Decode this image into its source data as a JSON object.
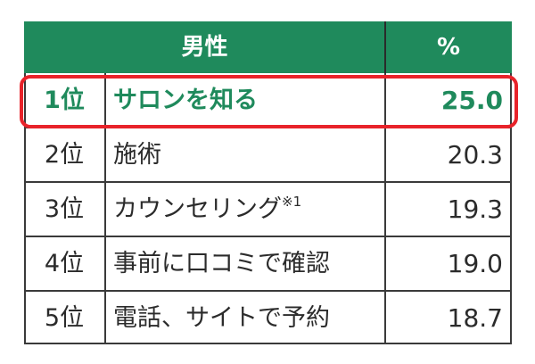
{
  "header": {
    "label": "男性",
    "percent": "%"
  },
  "colors": {
    "header_bg": "#1f8a5c",
    "highlight_text": "#1f8a5c",
    "highlight_border": "#e8232a"
  },
  "rows": [
    {
      "rank": "1位",
      "item": "サロンを知る",
      "note": "",
      "value": "25.0",
      "highlighted": true
    },
    {
      "rank": "2位",
      "item": "施術",
      "note": "",
      "value": "20.3",
      "highlighted": false
    },
    {
      "rank": "3位",
      "item": "カウンセリング",
      "note": "※1",
      "value": "19.3",
      "highlighted": false
    },
    {
      "rank": "4位",
      "item": "事前に口コミで確認",
      "note": "",
      "value": "19.0",
      "highlighted": false
    },
    {
      "rank": "5位",
      "item": "電話、サイトで予約",
      "note": "",
      "value": "18.7",
      "highlighted": false
    }
  ]
}
